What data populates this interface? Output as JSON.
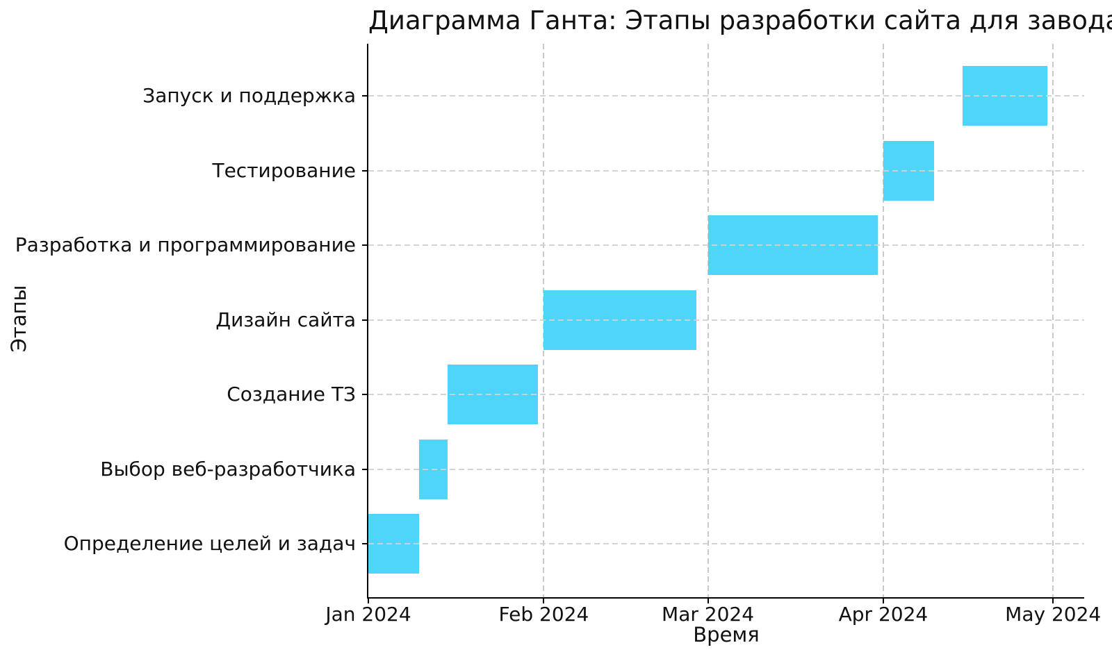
{
  "chart_data": {
    "type": "bar",
    "subtype": "gantt-horizontal",
    "title": "Диаграмма Ганта: Этапы разработки сайта для завода",
    "xlabel": "Время",
    "ylabel": "Этапы",
    "x_ticks": [
      {
        "label": "Jan 2024",
        "date": "2024-01-01"
      },
      {
        "label": "Feb 2024",
        "date": "2024-02-01"
      },
      {
        "label": "Mar 2024",
        "date": "2024-03-01"
      },
      {
        "label": "Apr 2024",
        "date": "2024-04-01"
      },
      {
        "label": "May 2024",
        "date": "2024-05-01"
      }
    ],
    "x_range": {
      "start_date": "2024-01-01",
      "span_days": 126.5
    },
    "categories_top_to_bottom": [
      "Запуск и поддержка",
      "Тестирование",
      "Разработка и программирование",
      "Дизайн сайта",
      "Создание ТЗ",
      "Выбор веб-разработчика",
      "Определение целей и задач"
    ],
    "tasks": [
      {
        "label": "Определение целей и задач",
        "start": "2024-01-01",
        "end": "2024-01-10"
      },
      {
        "label": "Выбор веб-разработчика",
        "start": "2024-01-10",
        "end": "2024-01-15"
      },
      {
        "label": "Создание ТЗ",
        "start": "2024-01-15",
        "end": "2024-01-31"
      },
      {
        "label": "Дизайн сайта",
        "start": "2024-02-01",
        "end": "2024-02-28"
      },
      {
        "label": "Разработка и программирование",
        "start": "2024-03-01",
        "end": "2024-03-31"
      },
      {
        "label": "Тестирование",
        "start": "2024-04-01",
        "end": "2024-04-10"
      },
      {
        "label": "Запуск и поддержка",
        "start": "2024-04-15",
        "end": "2024-04-30"
      }
    ],
    "bar_color": "#4FD5F9",
    "grid": {
      "style": "dashed",
      "color": "#c9c9c9",
      "horizontal": true,
      "vertical": true
    },
    "legend": "none",
    "background": "#ffffff",
    "text_color": "#111111"
  }
}
